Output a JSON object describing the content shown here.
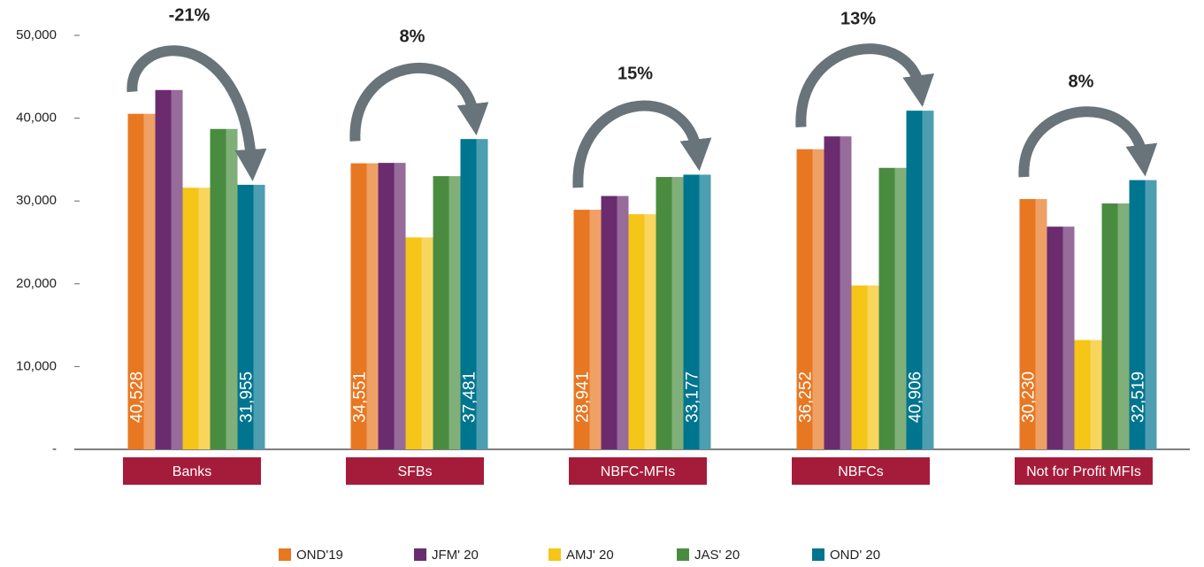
{
  "chart_data": {
    "type": "bar",
    "categories": [
      "Banks",
      "SFBs",
      "NBFC-MFIs",
      "NBFCs",
      "Not for Profit MFIs"
    ],
    "series": [
      {
        "name": "OND'19",
        "color": "#e87722",
        "values": [
          40528,
          34551,
          28941,
          36252,
          30230
        ],
        "value_labels": [
          "40,528",
          "34,551",
          "28,941",
          "36,252",
          "30,230"
        ]
      },
      {
        "name": "JFM' 20",
        "color": "#6a2c6e",
        "values": [
          43400,
          34600,
          30600,
          37800,
          26900
        ]
      },
      {
        "name": "AMJ' 20",
        "color": "#f5c518",
        "values": [
          31600,
          25600,
          28400,
          19800,
          13200
        ]
      },
      {
        "name": "JAS' 20",
        "color": "#4a8c3f",
        "values": [
          38700,
          33000,
          32900,
          34000,
          29700
        ]
      },
      {
        "name": "OND' 20",
        "color": "#00758f",
        "values": [
          31955,
          37481,
          33177,
          40906,
          32519
        ],
        "value_labels": [
          "31,955",
          "37,481",
          "33,177",
          "40,906",
          "32,519"
        ]
      }
    ],
    "annotations": [
      {
        "text": "-21%",
        "color": "#a51c3a"
      },
      {
        "text": "8%",
        "color": "#222222"
      },
      {
        "text": "15%",
        "color": "#222222"
      },
      {
        "text": "13%",
        "color": "#222222"
      },
      {
        "text": "8%",
        "color": "#222222"
      }
    ],
    "ylim": [
      0,
      50000
    ],
    "yticks": [
      {
        "value": 0,
        "label": "-"
      },
      {
        "value": 10000,
        "label": "10,000"
      },
      {
        "value": 20000,
        "label": "20,000"
      },
      {
        "value": 30000,
        "label": "30,000"
      },
      {
        "value": 40000,
        "label": "40,000"
      },
      {
        "value": 50000,
        "label": "50,000"
      }
    ],
    "legend": "bottom"
  }
}
